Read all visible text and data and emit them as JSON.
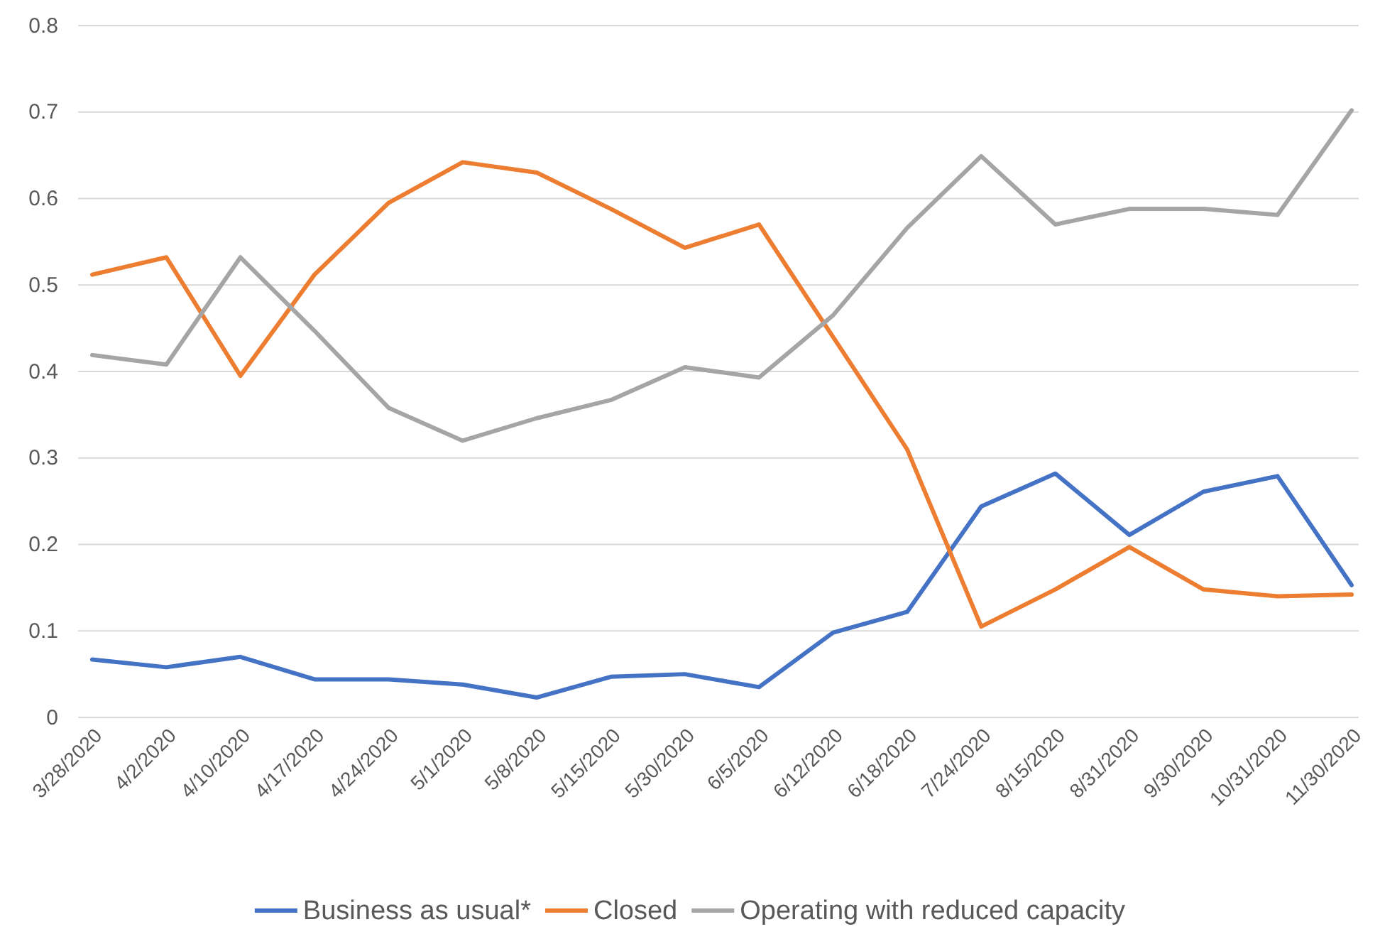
{
  "chart_data": {
    "type": "line",
    "categories": [
      "3/28/2020",
      "4/2/2020",
      "4/10/2020",
      "4/17/2020",
      "4/24/2020",
      "5/1/2020",
      "5/8/2020",
      "5/15/2020",
      "5/30/2020",
      "6/5/2020",
      "6/12/2020",
      "6/18/2020",
      "7/24/2020",
      "8/15/2020",
      "8/31/2020",
      "9/30/2020",
      "10/31/2020",
      "11/30/2020"
    ],
    "series": [
      {
        "name": "Business as usual*",
        "color": "#4472c4",
        "values": [
          0.067,
          0.058,
          0.07,
          0.044,
          0.044,
          0.038,
          0.023,
          0.047,
          0.05,
          0.035,
          0.098,
          0.122,
          0.244,
          0.282,
          0.211,
          0.261,
          0.279,
          0.153
        ]
      },
      {
        "name": "Closed",
        "color": "#ed7d31",
        "values": [
          0.512,
          0.532,
          0.395,
          0.512,
          0.595,
          0.642,
          0.63,
          0.588,
          0.543,
          0.57,
          0.44,
          0.31,
          0.105,
          0.148,
          0.197,
          0.148,
          0.14,
          0.142
        ]
      },
      {
        "name": "Operating with reduced capacity",
        "color": "#a5a5a5",
        "values": [
          0.419,
          0.408,
          0.532,
          0.447,
          0.358,
          0.32,
          0.346,
          0.367,
          0.405,
          0.393,
          0.465,
          0.566,
          0.649,
          0.57,
          0.588,
          0.588,
          0.581,
          0.702
        ]
      }
    ],
    "ylim": [
      0,
      0.8
    ],
    "yticks": [
      0,
      0.1,
      0.2,
      0.3,
      0.4,
      0.5,
      0.6,
      0.7,
      0.8
    ],
    "grid": "y",
    "legend": "bottom",
    "marker": "none",
    "line_style": "solid"
  }
}
